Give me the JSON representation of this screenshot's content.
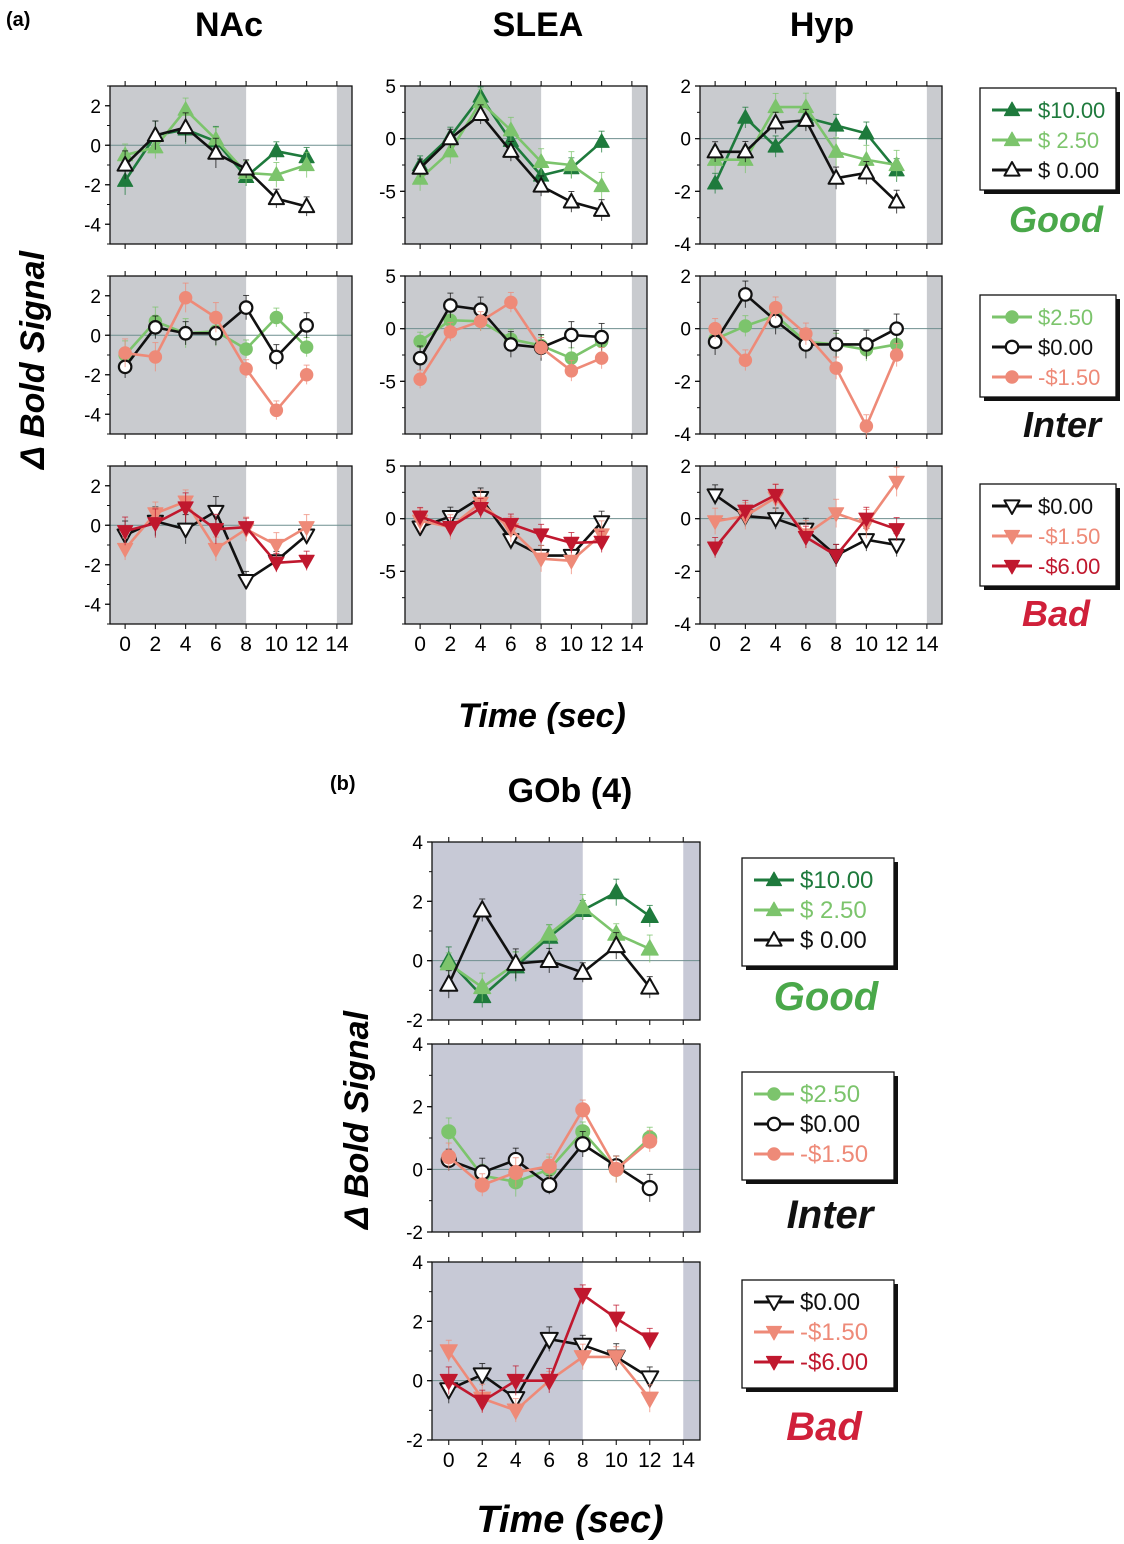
{
  "figure": {
    "panel_a_label": "(a)",
    "panel_b_label": "(b)",
    "regions": [
      "NAc",
      "SLEA",
      "Hyp"
    ],
    "gob_title": "GOb (4)",
    "ylabel": "Δ Bold Signal",
    "xlabel": "Time (sec)",
    "x_ticks": [
      0,
      2,
      4,
      6,
      8,
      10,
      12,
      14
    ]
  },
  "legends": [
    {
      "title": "Good",
      "title_color": "#4aa84a",
      "entries": [
        {
          "label": "$10.00",
          "color": "#1e7a3c",
          "marker": "triangle-up",
          "fill": "solid"
        },
        {
          "label": "$ 2.50",
          "color": "#7cc46c",
          "marker": "triangle-up",
          "fill": "solid"
        },
        {
          "label": "$ 0.00",
          "color": "#111111",
          "marker": "triangle-up",
          "fill": "open"
        }
      ]
    },
    {
      "title": "Inter",
      "title_color": "#111111",
      "entries": [
        {
          "label": "$2.50",
          "color": "#7cc46c",
          "marker": "circle",
          "fill": "solid"
        },
        {
          "label": "$0.00",
          "color": "#111111",
          "marker": "circle",
          "fill": "open"
        },
        {
          "label": "-$1.50",
          "color": "#ee8a78",
          "marker": "circle",
          "fill": "solid"
        }
      ]
    },
    {
      "title": "Bad",
      "title_color": "#d0203a",
      "entries": [
        {
          "label": "$0.00",
          "color": "#111111",
          "marker": "triangle-down",
          "fill": "open"
        },
        {
          "label": "-$1.50",
          "color": "#ee8a78",
          "marker": "triangle-down",
          "fill": "solid"
        },
        {
          "label": "-$6.00",
          "color": "#c0182e",
          "marker": "triangle-down",
          "fill": "solid"
        }
      ]
    }
  ],
  "chart_data": [
    {
      "type": "line",
      "region": "NAc",
      "condition": "Good",
      "x": [
        0,
        2,
        4,
        6,
        8,
        10,
        12
      ],
      "xlim": [
        -1,
        15
      ],
      "ylim": [
        -5,
        3
      ],
      "yticks": [
        2,
        0,
        -2,
        -4
      ],
      "shade": [
        [
          -1,
          8
        ],
        [
          14,
          15
        ]
      ],
      "series": [
        {
          "name": "$10.00",
          "values": [
            -1.8,
            0.5,
            0.8,
            0.2,
            -1.6,
            -0.3,
            -0.6
          ]
        },
        {
          "name": "$ 2.50",
          "values": [
            -0.5,
            -0.1,
            1.8,
            0.3,
            -1.4,
            -1.5,
            -1.0
          ]
        },
        {
          "name": "$ 0.00",
          "values": [
            -1.0,
            0.5,
            0.9,
            -0.4,
            -1.2,
            -2.7,
            -3.1
          ]
        }
      ]
    },
    {
      "type": "line",
      "region": "SLEA",
      "condition": "Good",
      "x": [
        0,
        2,
        4,
        6,
        8,
        10,
        12
      ],
      "xlim": [
        -1,
        15
      ],
      "ylim": [
        -10,
        5
      ],
      "yticks": [
        5,
        0,
        -5
      ],
      "shade": [
        [
          -1,
          8
        ],
        [
          14,
          15
        ]
      ],
      "series": [
        {
          "name": "$10.00",
          "values": [
            -2.5,
            0.2,
            4.0,
            -0.2,
            -3.5,
            -2.8,
            -0.3
          ]
        },
        {
          "name": "$ 2.50",
          "values": [
            -3.8,
            -1.2,
            3.5,
            0.8,
            -2.2,
            -2.5,
            -4.5
          ]
        },
        {
          "name": "$ 0.00",
          "values": [
            -2.8,
            0.0,
            2.3,
            -1.2,
            -4.5,
            -6.0,
            -6.8
          ]
        }
      ]
    },
    {
      "type": "line",
      "region": "Hyp",
      "condition": "Good",
      "x": [
        0,
        2,
        4,
        6,
        8,
        10,
        12
      ],
      "xlim": [
        -1,
        15
      ],
      "ylim": [
        -4,
        2
      ],
      "yticks": [
        2,
        0,
        -2,
        -4
      ],
      "shade": [
        [
          -1,
          8
        ],
        [
          14,
          15
        ]
      ],
      "series": [
        {
          "name": "$10.00",
          "values": [
            -1.7,
            0.8,
            -0.3,
            0.8,
            0.5,
            0.2,
            -1.2
          ]
        },
        {
          "name": "$ 2.50",
          "values": [
            -0.8,
            -0.8,
            1.2,
            1.2,
            -0.5,
            -0.8,
            -1.0
          ]
        },
        {
          "name": "$ 0.00",
          "values": [
            -0.5,
            -0.5,
            0.6,
            0.7,
            -1.5,
            -1.3,
            -2.4
          ]
        }
      ]
    },
    {
      "type": "line",
      "region": "NAc",
      "condition": "Inter",
      "x": [
        0,
        2,
        4,
        6,
        8,
        10,
        12
      ],
      "xlim": [
        -1,
        15
      ],
      "ylim": [
        -5,
        3
      ],
      "yticks": [
        2,
        0,
        -2,
        -4
      ],
      "shade": [
        [
          -1,
          8
        ],
        [
          14,
          15
        ]
      ],
      "series": [
        {
          "name": "$2.50",
          "values": [
            -1.0,
            0.7,
            0.1,
            0.2,
            -0.7,
            0.9,
            -0.6
          ]
        },
        {
          "name": "$0.00",
          "values": [
            -1.6,
            0.4,
            0.1,
            0.1,
            1.4,
            -1.1,
            0.5
          ]
        },
        {
          "name": "-$1.50",
          "values": [
            -0.9,
            -1.1,
            1.9,
            0.9,
            -1.7,
            -3.8,
            -2.0
          ]
        }
      ]
    },
    {
      "type": "line",
      "region": "SLEA",
      "condition": "Inter",
      "x": [
        0,
        2,
        4,
        6,
        8,
        10,
        12
      ],
      "xlim": [
        -1,
        15
      ],
      "ylim": [
        -10,
        5
      ],
      "yticks": [
        5,
        0,
        -5
      ],
      "shade": [
        [
          -1,
          8
        ],
        [
          14,
          15
        ]
      ],
      "series": [
        {
          "name": "$2.50",
          "values": [
            -1.2,
            0.8,
            0.7,
            -1.0,
            -1.6,
            -2.8,
            -1.2
          ]
        },
        {
          "name": "$0.00",
          "values": [
            -2.8,
            2.2,
            1.8,
            -1.5,
            -1.8,
            -0.6,
            -0.8
          ]
        },
        {
          "name": "-$1.50",
          "values": [
            -4.8,
            -0.3,
            0.7,
            2.5,
            -1.8,
            -4.0,
            -2.8
          ]
        }
      ]
    },
    {
      "type": "line",
      "region": "Hyp",
      "condition": "Inter",
      "x": [
        0,
        2,
        4,
        6,
        8,
        10,
        12
      ],
      "xlim": [
        -1,
        15
      ],
      "ylim": [
        -4,
        2
      ],
      "yticks": [
        2,
        0,
        -2,
        -4
      ],
      "shade": [
        [
          -1,
          8
        ],
        [
          14,
          15
        ]
      ],
      "series": [
        {
          "name": "$2.50",
          "values": [
            -0.4,
            0.1,
            0.5,
            -0.5,
            -0.6,
            -0.8,
            -0.6
          ]
        },
        {
          "name": "$0.00",
          "values": [
            -0.5,
            1.3,
            0.3,
            -0.6,
            -0.6,
            -0.6,
            0.0
          ]
        },
        {
          "name": "-$1.50",
          "values": [
            0.0,
            -1.2,
            0.8,
            -0.2,
            -1.5,
            -3.7,
            -1.0
          ]
        }
      ]
    },
    {
      "type": "line",
      "region": "NAc",
      "condition": "Bad",
      "x": [
        0,
        2,
        4,
        6,
        8,
        10,
        12
      ],
      "xlim": [
        -1,
        15
      ],
      "ylim": [
        -5,
        3
      ],
      "yticks": [
        2,
        0,
        -2,
        -4
      ],
      "shade": [
        [
          -1,
          8
        ],
        [
          14,
          15
        ]
      ],
      "series": [
        {
          "name": "$0.00",
          "values": [
            -0.5,
            0.2,
            -0.2,
            0.7,
            -2.8,
            -1.8,
            -0.5
          ]
        },
        {
          "name": "-$1.50",
          "values": [
            -1.2,
            0.6,
            1.2,
            -1.2,
            -0.2,
            -1.0,
            -0.1
          ]
        },
        {
          "name": "-$6.00",
          "values": [
            -0.3,
            0.1,
            0.9,
            -0.2,
            -0.1,
            -1.9,
            -1.8
          ]
        }
      ]
    },
    {
      "type": "line",
      "region": "SLEA",
      "condition": "Bad",
      "x": [
        0,
        2,
        4,
        6,
        8,
        10,
        12
      ],
      "xlim": [
        -1,
        15
      ],
      "ylim": [
        -10,
        5
      ],
      "yticks": [
        5,
        0,
        -5
      ],
      "shade": [
        [
          -1,
          8
        ],
        [
          14,
          15
        ]
      ],
      "series": [
        {
          "name": "$0.00",
          "values": [
            -0.8,
            0.2,
            2.0,
            -2.0,
            -3.5,
            -3.5,
            -0.3
          ]
        },
        {
          "name": "-$1.50",
          "values": [
            -0.2,
            -0.8,
            1.5,
            -1.0,
            -3.8,
            -4.0,
            -1.5
          ]
        },
        {
          "name": "-$6.00",
          "values": [
            0.2,
            -0.8,
            1.0,
            -0.5,
            -1.5,
            -2.3,
            -2.2
          ]
        }
      ]
    },
    {
      "type": "line",
      "region": "Hyp",
      "condition": "Bad",
      "x": [
        0,
        2,
        4,
        6,
        8,
        10,
        12
      ],
      "xlim": [
        -1,
        15
      ],
      "ylim": [
        -4,
        2
      ],
      "yticks": [
        2,
        0,
        -2,
        -4
      ],
      "shade": [
        [
          -1,
          8
        ],
        [
          14,
          15
        ]
      ],
      "series": [
        {
          "name": "$0.00",
          "values": [
            0.9,
            0.1,
            0.0,
            -0.4,
            -1.4,
            -0.8,
            -1.0
          ]
        },
        {
          "name": "-$1.50",
          "values": [
            -0.1,
            0.1,
            0.8,
            -0.6,
            0.2,
            -0.2,
            1.4
          ]
        },
        {
          "name": "-$6.00",
          "values": [
            -1.1,
            0.3,
            0.9,
            -0.7,
            -1.4,
            0.0,
            -0.4
          ]
        }
      ]
    },
    {
      "type": "line",
      "region": "GOb (4)",
      "condition": "Good",
      "x": [
        0,
        2,
        4,
        6,
        8,
        10,
        12
      ],
      "xlim": [
        -1,
        15
      ],
      "ylim": [
        -2,
        4
      ],
      "yticks": [
        4,
        2,
        0,
        -2
      ],
      "shade": [
        [
          -1,
          8
        ],
        [
          14,
          15
        ]
      ],
      "series": [
        {
          "name": "$10.00",
          "values": [
            0.0,
            -1.2,
            -0.2,
            0.8,
            1.7,
            2.3,
            1.5
          ]
        },
        {
          "name": "$ 2.50",
          "values": [
            -0.1,
            -0.9,
            -0.1,
            0.9,
            1.8,
            0.9,
            0.4
          ]
        },
        {
          "name": "$ 0.00",
          "values": [
            -0.8,
            1.7,
            -0.1,
            0.0,
            -0.4,
            0.5,
            -0.9
          ]
        }
      ]
    },
    {
      "type": "line",
      "region": "GOb (4)",
      "condition": "Inter",
      "x": [
        0,
        2,
        4,
        6,
        8,
        10,
        12
      ],
      "xlim": [
        -1,
        15
      ],
      "ylim": [
        -2,
        4
      ],
      "yticks": [
        4,
        2,
        0,
        -2
      ],
      "shade": [
        [
          -1,
          8
        ],
        [
          14,
          15
        ]
      ],
      "series": [
        {
          "name": "$2.50",
          "values": [
            1.2,
            -0.2,
            -0.4,
            0.0,
            1.2,
            0.0,
            1.0
          ]
        },
        {
          "name": "$0.00",
          "values": [
            0.3,
            -0.1,
            0.3,
            -0.5,
            0.8,
            0.1,
            -0.6
          ]
        },
        {
          "name": "-$1.50",
          "values": [
            0.4,
            -0.5,
            -0.1,
            0.1,
            1.9,
            0.0,
            0.9
          ]
        }
      ]
    },
    {
      "type": "line",
      "region": "GOb (4)",
      "condition": "Bad",
      "x": [
        0,
        2,
        4,
        6,
        8,
        10,
        12
      ],
      "xlim": [
        -1,
        15
      ],
      "ylim": [
        -2,
        4
      ],
      "yticks": [
        4,
        2,
        0,
        -2
      ],
      "shade": [
        [
          -1,
          8
        ],
        [
          14,
          15
        ]
      ],
      "series": [
        {
          "name": "$0.00",
          "values": [
            -0.3,
            0.2,
            -0.6,
            1.4,
            1.2,
            0.8,
            0.1
          ]
        },
        {
          "name": "-$1.50",
          "values": [
            1.0,
            -0.6,
            -1.0,
            0.0,
            0.8,
            0.8,
            -0.6
          ]
        },
        {
          "name": "-$6.00",
          "values": [
            0.0,
            -0.7,
            0.0,
            0.0,
            2.9,
            2.1,
            1.4
          ]
        }
      ]
    }
  ]
}
